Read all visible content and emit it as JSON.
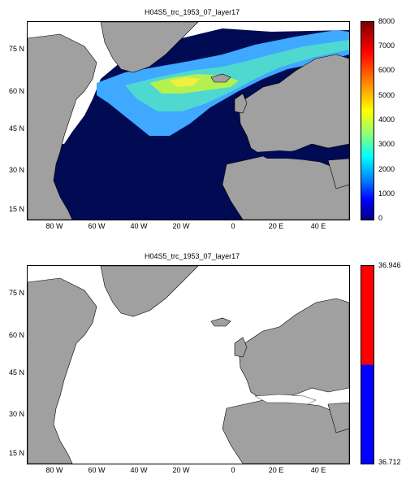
{
  "panels": [
    {
      "title": "H04S5_trc_1953_07_layer17",
      "lat_labels": [
        "75 N",
        "60 N",
        "45 N",
        "30 N",
        "15 N"
      ],
      "lon_labels": [
        "80 W",
        "60 W",
        "40 W",
        "20 W",
        "0",
        "20 E",
        "40 E"
      ],
      "colorbar": {
        "type": "jet",
        "ticks": [
          "8000",
          "7000",
          "6000",
          "5000",
          "4000",
          "3000",
          "2000",
          "1000",
          "0"
        ]
      }
    },
    {
      "title": "H04S5_trc_1953_07_layer17",
      "lat_labels": [
        "75 N",
        "60 N",
        "45 N",
        "30 N",
        "15 N"
      ],
      "lon_labels": [
        "80 W",
        "60 W",
        "40 W",
        "20 W",
        "0",
        "20 E",
        "40 E"
      ],
      "colorbar": {
        "type": "redblue",
        "ticks": [
          "36.946",
          "36.712"
        ]
      }
    }
  ],
  "colors": {
    "land": "#a0a0a0",
    "ocean_deep": "#000b54",
    "ocean_white": "#ffffff",
    "cb_red": "#ff0000",
    "cb_blue": "#0000ff"
  }
}
